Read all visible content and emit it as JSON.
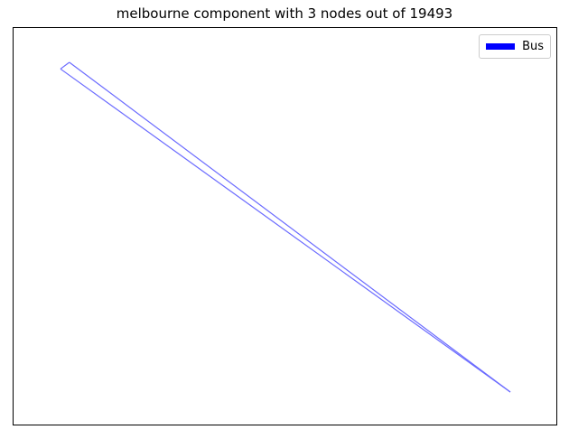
{
  "title": "melbourne component with 3 nodes out of 19493",
  "legend": {
    "label": "Bus",
    "color": "#0000ff"
  },
  "edge_color": "#6b6bff",
  "graph": {
    "nodes": [
      {
        "id": "a",
        "x": -0.02,
        "y": 0.02
      },
      {
        "id": "b",
        "x": 0.0,
        "y": 0.0
      },
      {
        "id": "c",
        "x": 1.0,
        "y": 1.0
      }
    ],
    "edges": [
      {
        "source": "a",
        "target": "b"
      },
      {
        "source": "b",
        "target": "c"
      },
      {
        "source": "c",
        "target": "a"
      }
    ]
  }
}
